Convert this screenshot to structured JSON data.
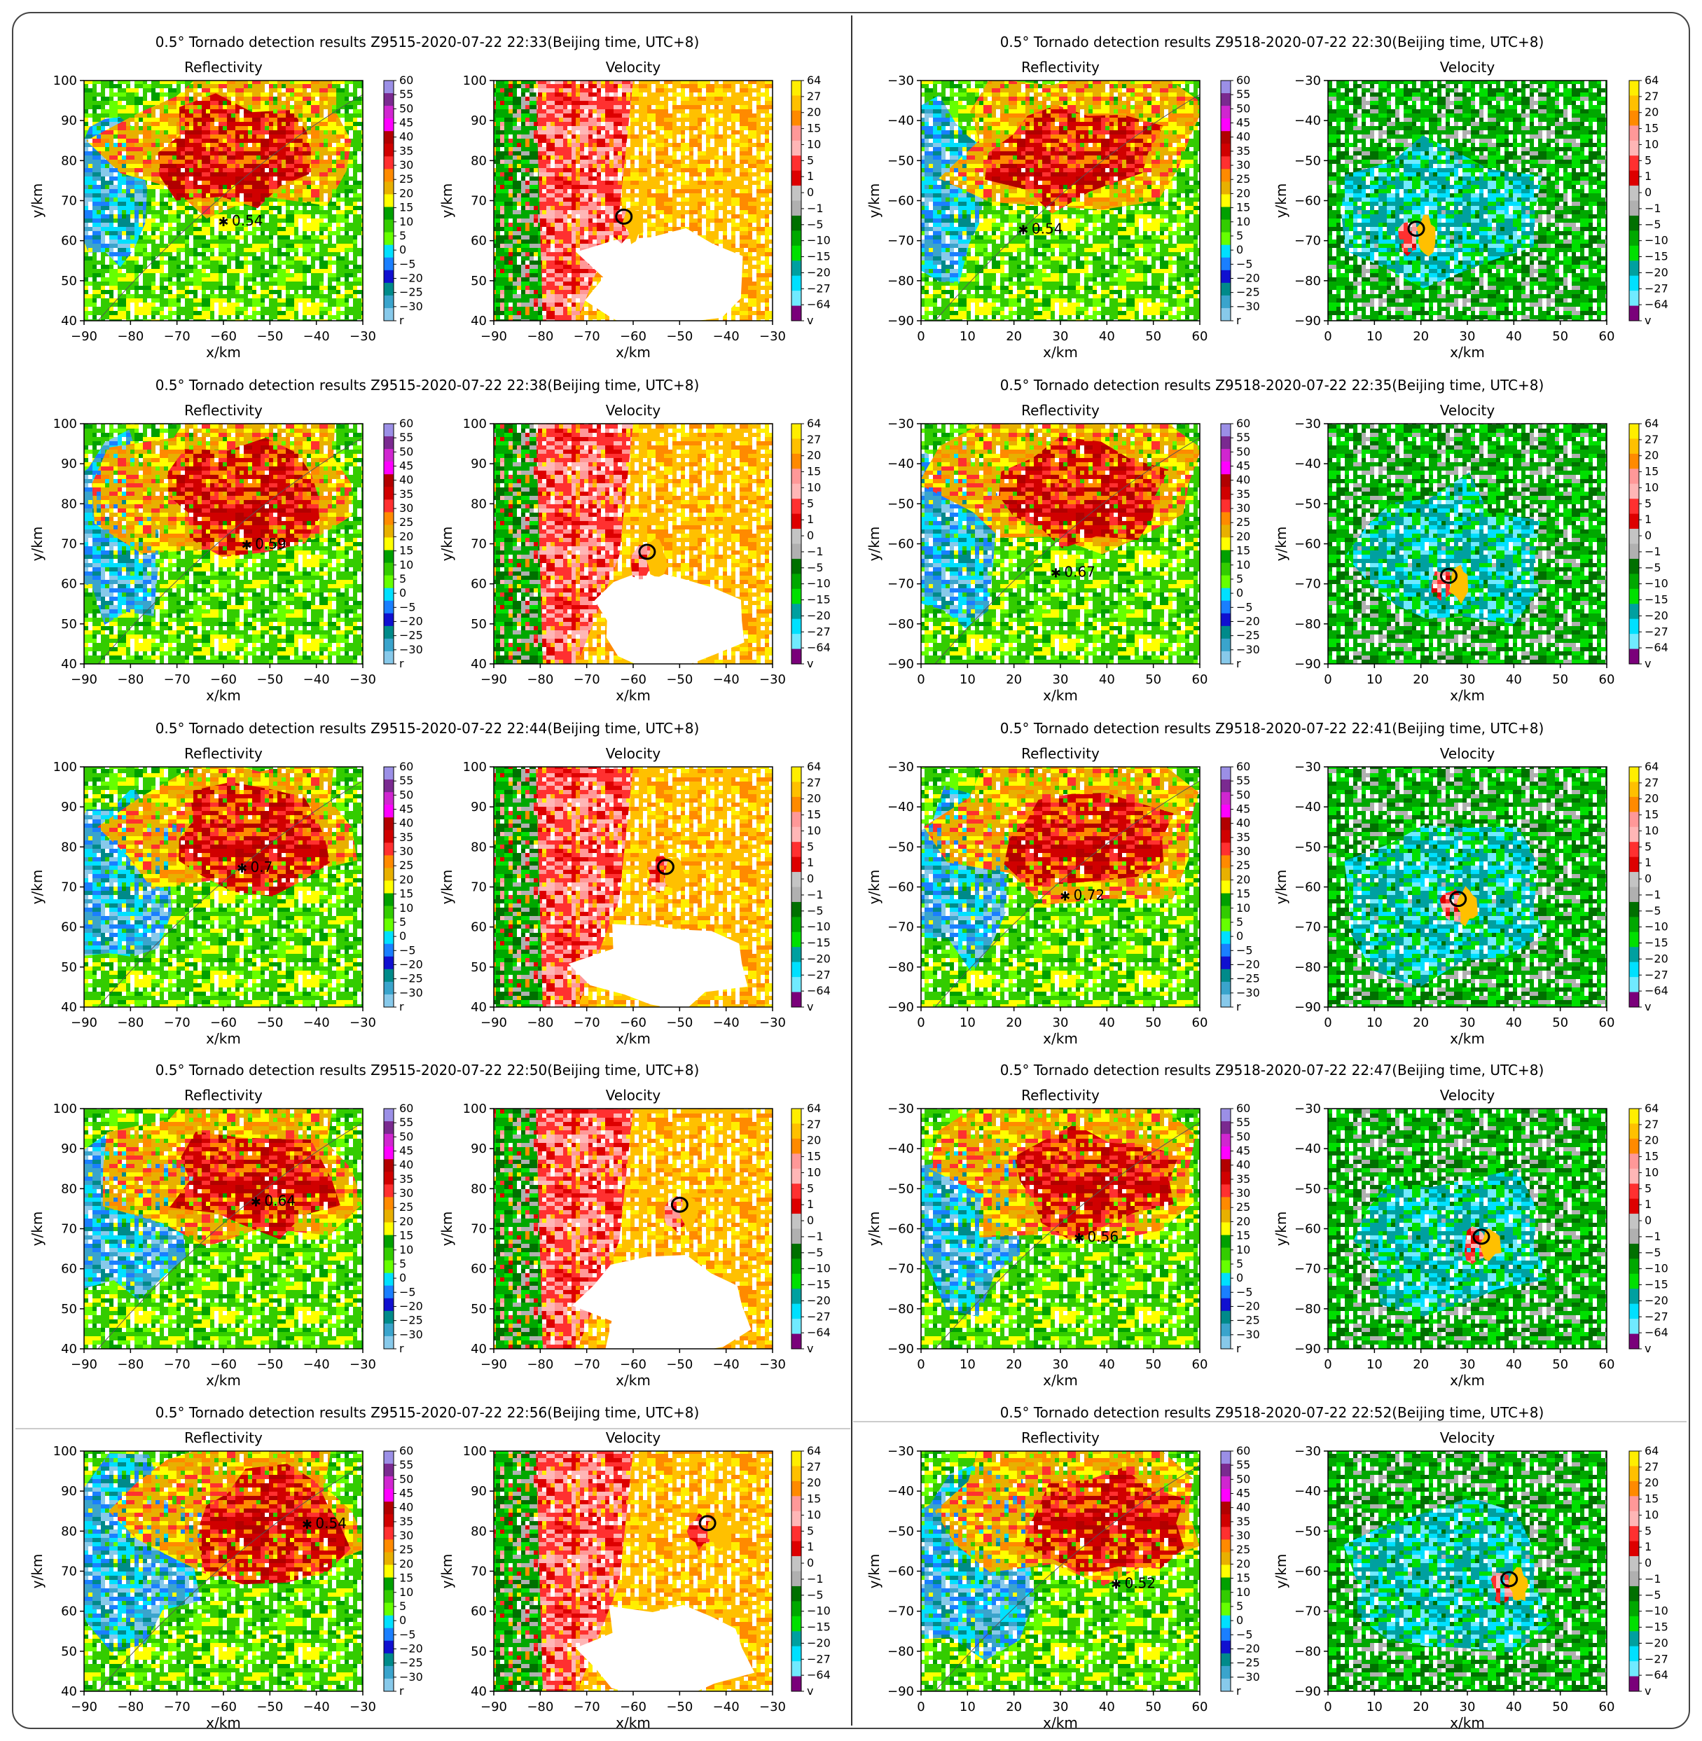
{
  "figure": {
    "colors": {
      "background": "#ffffff",
      "border": "#444444",
      "radar_white": "#ffffff"
    },
    "subplot_titles": [
      "Reflectivity",
      "Velocity"
    ],
    "x_label": "x/km",
    "y_label": "y/km",
    "reflectivity_colorbar": {
      "labels": [
        "60",
        "55",
        "50",
        "45",
        "40",
        "35",
        "30",
        "25",
        "20",
        "15",
        "10",
        "5",
        "0",
        "−5",
        "−20",
        "−25",
        "−30",
        "r"
      ],
      "colors": [
        "#9b8fe6",
        "#7a2a90",
        "#d026d0",
        "#ff00ff",
        "#b10000",
        "#d00000",
        "#ff3030",
        "#ff8a00",
        "#e8b000",
        "#ffff00",
        "#00a000",
        "#33cc00",
        "#66ff00",
        "#00e0ff",
        "#1a7fff",
        "#1010d0",
        "#008a8a",
        "#3aa4cc",
        "#87c9ea"
      ]
    },
    "velocity_colorbar": {
      "labels": [
        "64",
        "27",
        "20",
        "15",
        "10",
        "5",
        "1",
        "0",
        "−1",
        "−5",
        "−10",
        "−15",
        "−20",
        "−27",
        "−64",
        "v"
      ],
      "colors": [
        "#ffee00",
        "#ffc000",
        "#ff8a00",
        "#ff9898",
        "#ffb6b6",
        "#ff3030",
        "#dd0000",
        "#c4c4c4",
        "#b0b0b0",
        "#007000",
        "#00a800",
        "#00e000",
        "#00a0a0",
        "#00e0ff",
        "#70eaff",
        "#7a007a"
      ]
    },
    "columns": [
      {
        "radar": "Z9515",
        "x_range": [
          -90,
          -30
        ],
        "y_range": [
          40,
          100
        ],
        "x_ticks": [
          "−90",
          "−80",
          "−70",
          "−60",
          "−50",
          "−40",
          "−30"
        ],
        "y_ticks": [
          "100",
          "90",
          "80",
          "70",
          "60",
          "50",
          "40"
        ],
        "panels": [
          {
            "title": "0.5° Tornado detection results Z9515-2020-07-22 22:33(Beijing time, UTC+8)",
            "probability": "0.54",
            "star": [
              -60,
              65
            ],
            "circle": [
              -62,
              66
            ]
          },
          {
            "title": "0.5° Tornado detection results Z9515-2020-07-22 22:38(Beijing time, UTC+8)",
            "probability": "0.59",
            "star": [
              -55,
              70
            ],
            "circle": [
              -57,
              68
            ]
          },
          {
            "title": "0.5° Tornado detection results Z9515-2020-07-22 22:44(Beijing time, UTC+8)",
            "probability": "0.7",
            "star": [
              -56,
              75
            ],
            "circle": [
              -53,
              75
            ]
          },
          {
            "title": "0.5° Tornado detection results Z9515-2020-07-22 22:50(Beijing time, UTC+8)",
            "probability": "0.64",
            "star": [
              -53,
              77
            ],
            "circle": [
              -50,
              76
            ]
          },
          {
            "title": "0.5° Tornado detection results Z9515-2020-07-22 22:56(Beijing time, UTC+8)",
            "probability": "0.54",
            "star": [
              -42,
              82
            ],
            "circle": [
              -44,
              82
            ]
          }
        ]
      },
      {
        "radar": "Z9518",
        "x_range": [
          0,
          60
        ],
        "y_range": [
          -90,
          -30
        ],
        "x_ticks": [
          "0",
          "10",
          "20",
          "30",
          "40",
          "50",
          "60"
        ],
        "y_ticks": [
          "−30",
          "−40",
          "−50",
          "−60",
          "−70",
          "−80",
          "−90"
        ],
        "panels": [
          {
            "title": "0.5° Tornado detection results Z9518-2020-07-22 22:30(Beijing time, UTC+8)",
            "probability": "0.54",
            "star": [
              22,
              -67
            ],
            "circle": [
              19,
              -67
            ]
          },
          {
            "title": "0.5° Tornado detection results Z9518-2020-07-22 22:35(Beijing time, UTC+8)",
            "probability": "0.67",
            "star": [
              29,
              -67
            ],
            "circle": [
              26,
              -68
            ]
          },
          {
            "title": "0.5° Tornado detection results Z9518-2020-07-22 22:41(Beijing time, UTC+8)",
            "probability": "0.72",
            "star": [
              31,
              -62
            ],
            "circle": [
              28,
              -63
            ]
          },
          {
            "title": "0.5° Tornado detection results Z9518-2020-07-22 22:47(Beijing time, UTC+8)",
            "probability": "0.56",
            "star": [
              34,
              -62
            ],
            "circle": [
              33,
              -62
            ]
          },
          {
            "title": "0.5° Tornado detection results Z9518-2020-07-22 22:52(Beijing time, UTC+8)",
            "probability": "0.52",
            "star": [
              42,
              -63
            ],
            "circle": [
              39,
              -62
            ]
          }
        ]
      }
    ]
  }
}
